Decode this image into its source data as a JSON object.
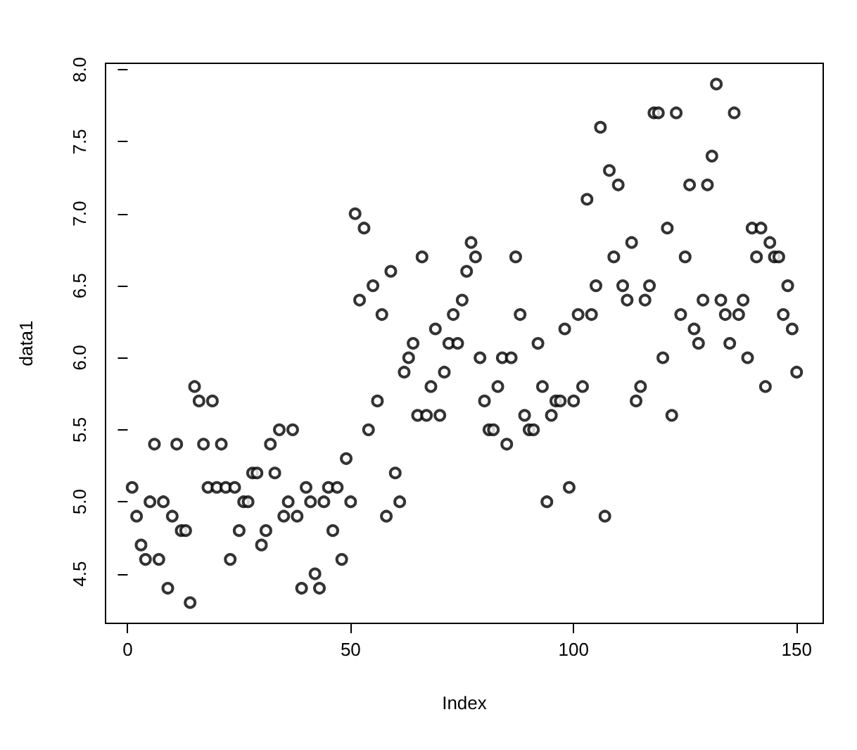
{
  "chart_data": {
    "type": "scatter",
    "xlabel": "Index",
    "ylabel": "data1",
    "marker": "circle",
    "grid": false,
    "xlim": [
      -4.96,
      155.96
    ],
    "xticks": [
      0,
      50,
      100,
      150
    ],
    "ylim": [
      4.156,
      8.044
    ],
    "yticks": [
      4.5,
      {
        "value": 5,
        "label": "5.0"
      },
      5.5,
      {
        "value": 6,
        "label": "6.0"
      },
      6.5,
      {
        "value": 7,
        "label": "7.0"
      },
      7.5,
      {
        "value": 8,
        "label": "8.0"
      }
    ],
    "series": [
      {
        "color": "#000000",
        "x": [
          1,
          2,
          3,
          4,
          5,
          6,
          7,
          8,
          9,
          10,
          11,
          12,
          13,
          14,
          15,
          16,
          17,
          18,
          19,
          20,
          21,
          22,
          23,
          24,
          25,
          26,
          27,
          28,
          29,
          30,
          31,
          32,
          33,
          34,
          35,
          36,
          37,
          38,
          39,
          40,
          41,
          42,
          43,
          44,
          45,
          46,
          47,
          48,
          49,
          50,
          51,
          52,
          53,
          54,
          55,
          56,
          57,
          58,
          59,
          60,
          61,
          62,
          63,
          64,
          65,
          66,
          67,
          68,
          69,
          70,
          71,
          72,
          73,
          74,
          75,
          76,
          77,
          78,
          79,
          80,
          81,
          82,
          83,
          84,
          85,
          86,
          87,
          88,
          89,
          90,
          91,
          92,
          93,
          94,
          95,
          96,
          97,
          98,
          99,
          100,
          101,
          102,
          103,
          104,
          105,
          106,
          107,
          108,
          109,
          110,
          111,
          112,
          113,
          114,
          115,
          116,
          117,
          118,
          119,
          120,
          121,
          122,
          123,
          124,
          125,
          126,
          127,
          128,
          129,
          130,
          131,
          132,
          133,
          134,
          135,
          136,
          137,
          138,
          139,
          140,
          141,
          142,
          143,
          144,
          145,
          146,
          147,
          148,
          149,
          150
        ],
        "values": [
          5.1,
          4.9,
          4.7,
          4.6,
          5.0,
          5.4,
          4.6,
          5.0,
          4.4,
          4.9,
          5.4,
          4.8,
          4.8,
          4.3,
          5.8,
          5.7,
          5.4,
          5.1,
          5.7,
          5.1,
          5.4,
          5.1,
          4.6,
          5.1,
          4.8,
          5.0,
          5.0,
          5.2,
          5.2,
          4.7,
          4.8,
          5.4,
          5.2,
          5.5,
          4.9,
          5.0,
          5.5,
          4.9,
          4.4,
          5.1,
          5.0,
          4.5,
          4.4,
          5.0,
          5.1,
          4.8,
          5.1,
          4.6,
          5.3,
          5.0,
          7.0,
          6.4,
          6.9,
          5.5,
          6.5,
          5.7,
          6.3,
          4.9,
          6.6,
          5.2,
          5.0,
          5.9,
          6.0,
          6.1,
          5.6,
          6.7,
          5.6,
          5.8,
          6.2,
          5.6,
          5.9,
          6.1,
          6.3,
          6.1,
          6.4,
          6.6,
          6.8,
          6.7,
          6.0,
          5.7,
          5.5,
          5.5,
          5.8,
          6.0,
          5.4,
          6.0,
          6.7,
          6.3,
          5.6,
          5.5,
          5.5,
          6.1,
          5.8,
          5.0,
          5.6,
          5.7,
          5.7,
          6.2,
          5.1,
          5.7,
          6.3,
          5.8,
          7.1,
          6.3,
          6.5,
          7.6,
          4.9,
          7.3,
          6.7,
          7.2,
          6.5,
          6.4,
          6.8,
          5.7,
          5.8,
          6.4,
          6.5,
          7.7,
          7.7,
          6.0,
          6.9,
          5.6,
          7.7,
          6.3,
          6.7,
          7.2,
          6.2,
          6.1,
          6.4,
          7.2,
          7.4,
          7.9,
          6.4,
          6.3,
          6.1,
          7.7,
          6.3,
          6.4,
          6.0,
          6.9,
          6.7,
          6.9,
          5.8,
          6.8,
          6.7,
          6.7,
          6.3,
          6.5,
          6.2,
          5.9
        ]
      }
    ]
  }
}
